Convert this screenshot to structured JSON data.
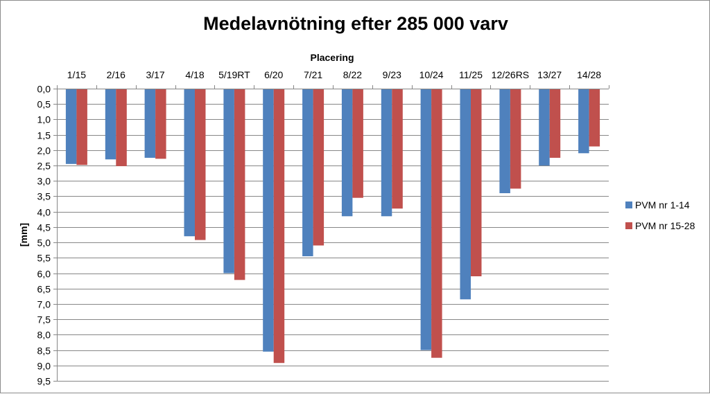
{
  "chart_data": {
    "type": "bar",
    "orientation": "vertical-inverted",
    "title": "Medelavnötning efter 285 000 varv",
    "xlabel": "Placering",
    "ylabel": "[mm]",
    "x_axis_position": "top",
    "y_reversed": true,
    "ylim": [
      0,
      9.5
    ],
    "y_step": 0.5,
    "y_tick_labels": [
      "0,0",
      "0,5",
      "1,0",
      "1,5",
      "2,0",
      "2,5",
      "3,0",
      "3,5",
      "4,0",
      "4,5",
      "5,0",
      "5,5",
      "6,0",
      "6,5",
      "7,0",
      "7,5",
      "8,0",
      "8,5",
      "9,0",
      "9,5"
    ],
    "grid": true,
    "legend_position": "right",
    "categories": [
      "1/15",
      "2/16",
      "3/17",
      "4/18",
      "5/19RT",
      "6/20",
      "7/21",
      "8/22",
      "9/23",
      "10/24",
      "11/25",
      "12/26RS",
      "13/27",
      "14/28"
    ],
    "series": [
      {
        "name": "PVM nr 1-14",
        "color": "#4F81BD",
        "values": [
          2.45,
          2.3,
          2.25,
          4.8,
          6.0,
          8.55,
          5.45,
          4.15,
          4.15,
          8.5,
          6.85,
          3.4,
          2.5,
          2.1
        ]
      },
      {
        "name": "PVM nr 15-28",
        "color": "#C0504D",
        "values": [
          2.48,
          2.52,
          2.28,
          4.92,
          6.22,
          8.92,
          5.1,
          3.55,
          3.9,
          8.75,
          6.1,
          3.25,
          2.25,
          1.88
        ]
      }
    ]
  }
}
